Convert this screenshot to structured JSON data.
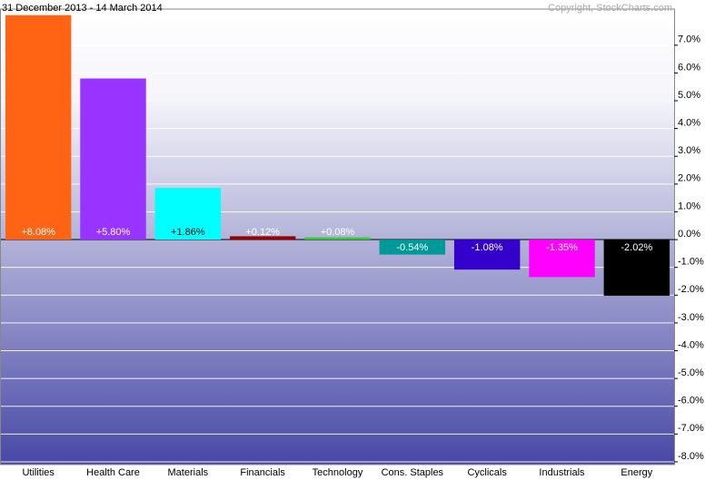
{
  "chart_data": {
    "type": "bar",
    "title": "31 December 2013 - 14 March 2014",
    "subtitle": "Copyright, StockCharts.com",
    "categories": [
      "Utilities",
      "Health Care",
      "Materials",
      "Financials",
      "Technology",
      "Cons. Staples",
      "Cyclicals",
      "Industrials",
      "Energy"
    ],
    "values": [
      8.08,
      5.8,
      1.86,
      0.12,
      0.08,
      -0.54,
      -1.08,
      -1.35,
      -2.02
    ],
    "value_labels": [
      "+8.08%",
      "+5.80%",
      "+1.86%",
      "+0.12%",
      "+0.08%",
      "-0.54%",
      "-1.08%",
      "-1.35%",
      "-2.02%"
    ],
    "colors": [
      "#ff6414",
      "#9933ff",
      "#00ffff",
      "#990000",
      "#33cc33",
      "#009999",
      "#3300cc",
      "#ff00ff",
      "#000000"
    ],
    "ylim": [
      -8.1,
      8.3
    ],
    "yticks": [
      {
        "value": 7,
        "label": "7.0%"
      },
      {
        "value": 6,
        "label": "6.0%"
      },
      {
        "value": 5,
        "label": "5.0%"
      },
      {
        "value": 4,
        "label": "4.0%"
      },
      {
        "value": 3,
        "label": "3.0%"
      },
      {
        "value": 2,
        "label": "2.0%"
      },
      {
        "value": 1,
        "label": "1.0%"
      },
      {
        "value": 0,
        "label": "0.0%"
      },
      {
        "value": -1,
        "label": "-1.0%"
      },
      {
        "value": -2,
        "label": "-2.0%"
      },
      {
        "value": -3,
        "label": "-3.0%"
      },
      {
        "value": -4,
        "label": "-4.0%"
      },
      {
        "value": -5,
        "label": "-5.0%"
      },
      {
        "value": -6,
        "label": "-6.0%"
      },
      {
        "value": -7,
        "label": "-7.0%"
      },
      {
        "value": -8,
        "label": "-8.0%"
      }
    ],
    "grid": true
  }
}
